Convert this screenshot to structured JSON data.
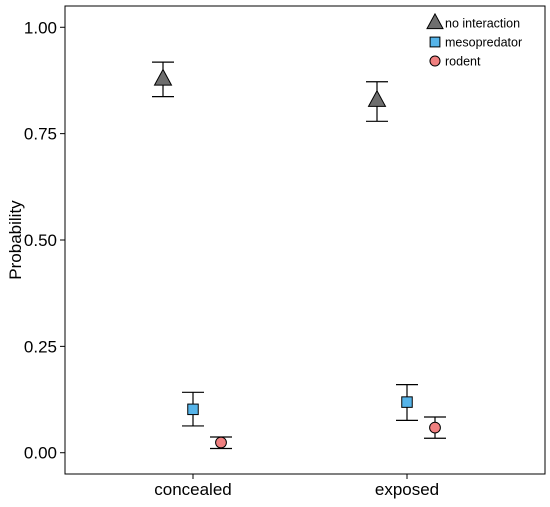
{
  "chart_data": {
    "type": "scatter",
    "title": "",
    "xlabel": "",
    "ylabel": "Probability",
    "categories": [
      "concealed",
      "exposed"
    ],
    "ylim": [
      -0.05,
      1.05
    ],
    "yticks": [
      0.0,
      0.25,
      0.5,
      0.75,
      1.0
    ],
    "ytick_labels": [
      "0.00",
      "0.25",
      "0.50",
      "0.75",
      "1.00"
    ],
    "grid": false,
    "legend_position": "top-right",
    "series": [
      {
        "name": "no interaction",
        "marker": "triangle",
        "color": "#6e6e6e",
        "values": [
          0.878,
          0.828
        ],
        "lower": [
          0.837,
          0.779
        ],
        "upper": [
          0.918,
          0.872
        ]
      },
      {
        "name": "mesopredator",
        "marker": "square",
        "color": "#56b4e9",
        "values": [
          0.102,
          0.119
        ],
        "lower": [
          0.063,
          0.076
        ],
        "upper": [
          0.142,
          0.16
        ]
      },
      {
        "name": "rodent",
        "marker": "circle",
        "color": "#f08080",
        "values": [
          0.024,
          0.059
        ],
        "lower": [
          0.01,
          0.034
        ],
        "upper": [
          0.037,
          0.084
        ]
      }
    ]
  }
}
